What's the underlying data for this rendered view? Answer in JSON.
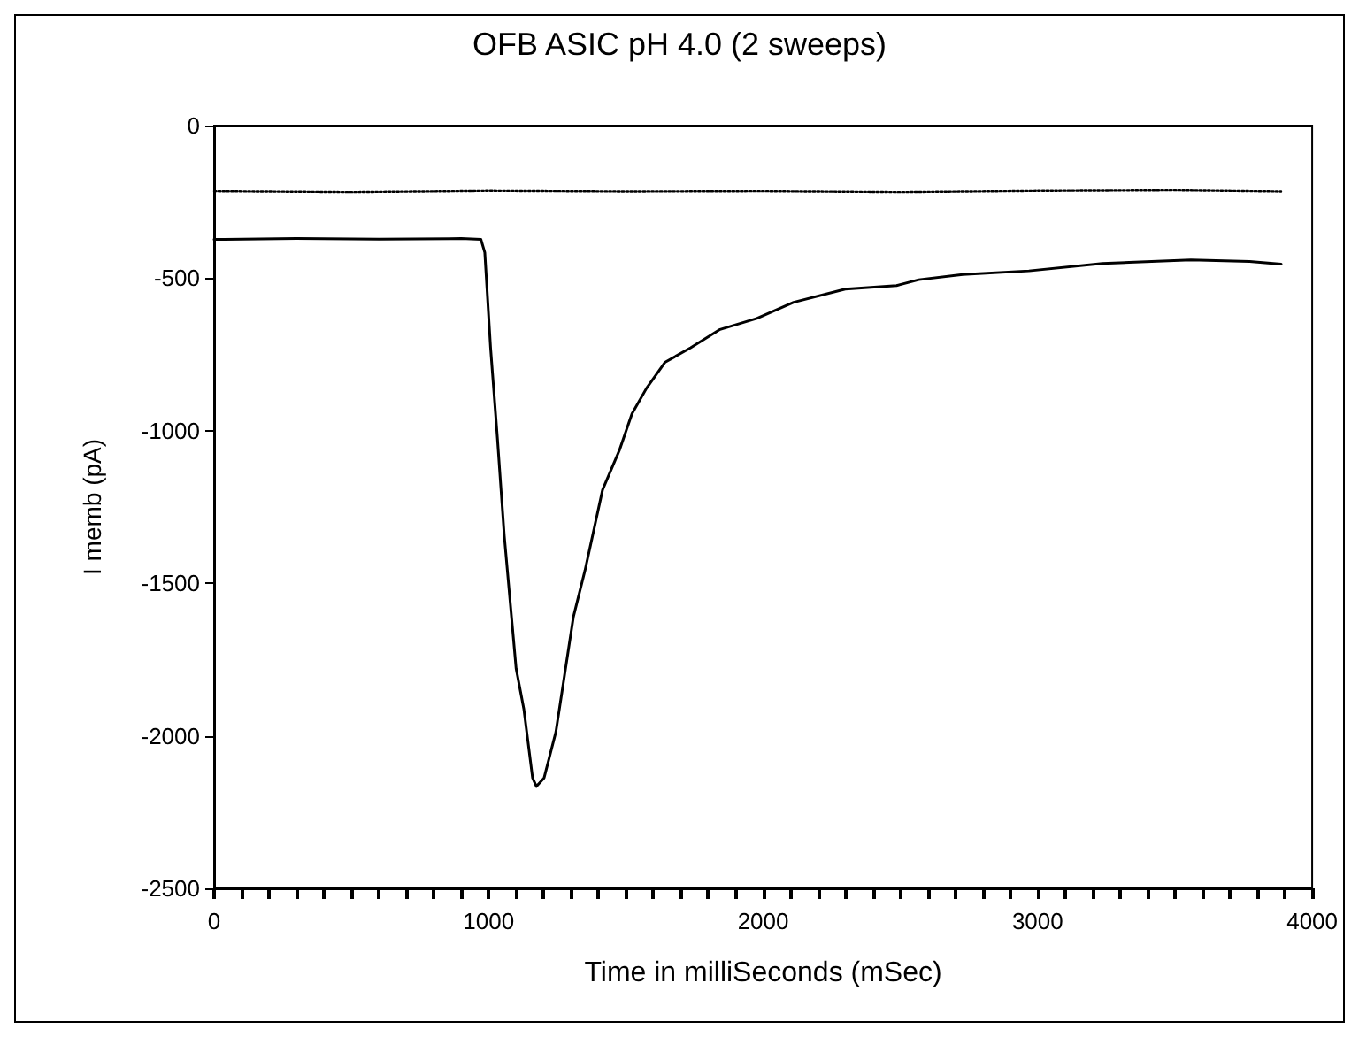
{
  "chart_data": {
    "type": "line",
    "title": "OFB ASIC pH 4.0 (2 sweeps)",
    "xlabel": "Time in milliSeconds (mSec)",
    "ylabel": "I memb (pA)",
    "xlim": [
      0,
      4000
    ],
    "ylim": [
      -2500,
      0
    ],
    "xticks": [
      0,
      {
        "value": 100,
        "label": null
      },
      {
        "value": 200,
        "label": null
      },
      {
        "value": 300,
        "label": null
      },
      {
        "value": 400,
        "label": null
      },
      {
        "value": 500,
        "label": null
      },
      {
        "value": 600,
        "label": null
      },
      {
        "value": 700,
        "label": null
      },
      {
        "value": 800,
        "label": null
      },
      {
        "value": 900,
        "label": null
      },
      1000,
      {
        "value": 1100,
        "label": null
      },
      {
        "value": 1200,
        "label": null
      },
      {
        "value": 1300,
        "label": null
      },
      {
        "value": 1400,
        "label": null
      },
      {
        "value": 1500,
        "label": null
      },
      {
        "value": 1600,
        "label": null
      },
      {
        "value": 1700,
        "label": null
      },
      {
        "value": 1800,
        "label": null
      },
      {
        "value": 1900,
        "label": null
      },
      2000,
      {
        "value": 2100,
        "label": null
      },
      {
        "value": 2200,
        "label": null
      },
      {
        "value": 2300,
        "label": null
      },
      {
        "value": 2400,
        "label": null
      },
      {
        "value": 2500,
        "label": null
      },
      {
        "value": 2600,
        "label": null
      },
      {
        "value": 2700,
        "label": null
      },
      {
        "value": 2800,
        "label": null
      },
      {
        "value": 2900,
        "label": null
      },
      3000,
      {
        "value": 3100,
        "label": null
      },
      {
        "value": 3200,
        "label": null
      },
      {
        "value": 3300,
        "label": null
      },
      {
        "value": 3400,
        "label": null
      },
      {
        "value": 3500,
        "label": null
      },
      {
        "value": 3600,
        "label": null
      },
      {
        "value": 3700,
        "label": null
      },
      {
        "value": 3800,
        "label": null
      },
      {
        "value": 3900,
        "label": null
      },
      4000
    ],
    "yticks": [
      -2500,
      -2000,
      -1500,
      -1000,
      -500,
      0
    ],
    "marker": "none",
    "grid": false,
    "series": [
      {
        "color": "#000000",
        "line_style": "dotted",
        "x": [
          0,
          500,
          1000,
          1500,
          2000,
          2500,
          3000,
          3500,
          3887
        ],
        "values": [
          -215,
          -218,
          -214,
          -216,
          -215,
          -218,
          -214,
          -212,
          -216
        ]
      },
      {
        "color": "#000000",
        "line_style": "solid",
        "x": [
          0,
          300,
          600,
          900,
          972,
          986,
          1007,
          1032,
          1057,
          1100,
          1128,
          1160,
          1174,
          1202,
          1245,
          1309,
          1351,
          1415,
          1476,
          1522,
          1575,
          1642,
          1736,
          1843,
          1977,
          2111,
          2299,
          2486,
          2567,
          2727,
          2968,
          3236,
          3558,
          3772,
          3887
        ],
        "values": [
          -373,
          -370,
          -372,
          -370,
          -373,
          -416,
          -728,
          -1025,
          -1345,
          -1779,
          -1911,
          -2138,
          -2166,
          -2138,
          -1987,
          -1609,
          -1458,
          -1194,
          -1065,
          -945,
          -861,
          -776,
          -728,
          -668,
          -632,
          -579,
          -536,
          -524,
          -505,
          -488,
          -476,
          -452,
          -440,
          -445,
          -454
        ]
      }
    ]
  }
}
